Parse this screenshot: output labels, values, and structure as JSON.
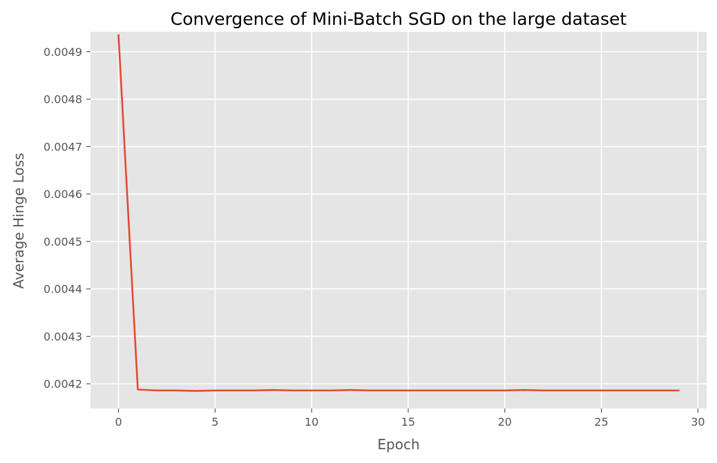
{
  "chart_data": {
    "type": "line",
    "title": "Convergence of Mini-Batch SGD on the large dataset",
    "xlabel": "Epoch",
    "ylabel": "Average Hinge Loss",
    "xlim": [
      -1.45,
      30.45
    ],
    "ylim": [
      0.004148,
      0.004942
    ],
    "xticks": [
      0,
      5,
      10,
      15,
      20,
      25,
      30
    ],
    "yticks": [
      0.0042,
      0.0043,
      0.0044,
      0.0045,
      0.0046,
      0.0047,
      0.0048,
      0.0049
    ],
    "xtick_labels": [
      "0",
      "5",
      "10",
      "15",
      "20",
      "25",
      "30"
    ],
    "ytick_labels": [
      "0.0042",
      "0.0043",
      "0.0044",
      "0.0045",
      "0.0046",
      "0.0047",
      "0.0048",
      "0.0049"
    ],
    "grid": true,
    "background_color": "#e5e5e5",
    "grid_color": "#ffffff",
    "series": [
      {
        "color": "#e24a33",
        "x": [
          0,
          1,
          2,
          3,
          4,
          5,
          6,
          7,
          8,
          9,
          10,
          11,
          12,
          13,
          14,
          15,
          16,
          17,
          18,
          19,
          20,
          21,
          22,
          23,
          24,
          25,
          26,
          27,
          28,
          29
        ],
        "y": [
          0.004935,
          0.004188,
          0.004186,
          0.004186,
          0.004185,
          0.004186,
          0.004186,
          0.004186,
          0.004187,
          0.004186,
          0.004186,
          0.004186,
          0.004187,
          0.004186,
          0.004186,
          0.004186,
          0.004186,
          0.004186,
          0.004186,
          0.004186,
          0.004186,
          0.004187,
          0.004186,
          0.004186,
          0.004186,
          0.004186,
          0.004186,
          0.004186,
          0.004186,
          0.004186
        ]
      }
    ]
  }
}
